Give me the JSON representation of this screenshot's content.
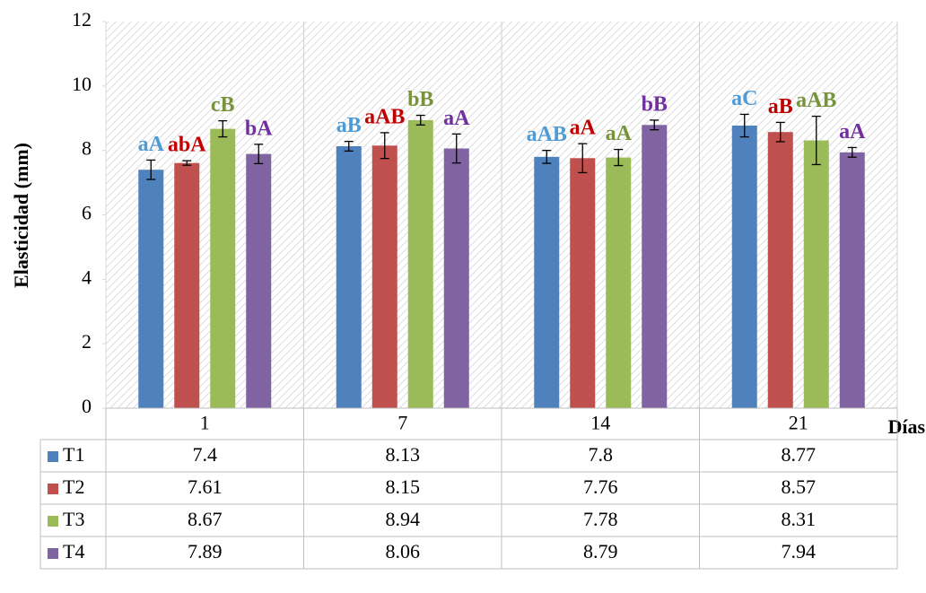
{
  "chart_data": {
    "type": "bar",
    "ylabel": "Elasticidad (mm)",
    "xlabel": "Días",
    "categories": [
      "1",
      "7",
      "14",
      "21"
    ],
    "ylim": [
      0,
      12
    ],
    "yticks": [
      0,
      2,
      4,
      6,
      8,
      10,
      12
    ],
    "series": [
      {
        "name": "T1",
        "color": "#4f81bd",
        "label_color": "#4f9bd6",
        "values": [
          7.4,
          8.13,
          7.8,
          8.77
        ],
        "errors": [
          0.3,
          0.15,
          0.2,
          0.35
        ],
        "annotations": [
          "aA",
          "aB",
          "aAB",
          "aC"
        ]
      },
      {
        "name": "T2",
        "color": "#c0504d",
        "label_color": "#c00000",
        "values": [
          7.61,
          8.15,
          7.76,
          8.57
        ],
        "errors": [
          0.07,
          0.4,
          0.45,
          0.3
        ],
        "annotations": [
          "abA",
          "aAB",
          "aA",
          "aB"
        ]
      },
      {
        "name": "T3",
        "color": "#9bbb59",
        "label_color": "#77933c",
        "values": [
          8.67,
          8.94,
          7.78,
          8.31
        ],
        "errors": [
          0.25,
          0.15,
          0.25,
          0.75
        ],
        "annotations": [
          "cB",
          "bB",
          "aA",
          "aAB"
        ]
      },
      {
        "name": "T4",
        "color": "#8064a2",
        "label_color": "#7030a0",
        "values": [
          7.89,
          8.06,
          8.79,
          7.94
        ],
        "errors": [
          0.3,
          0.45,
          0.15,
          0.15
        ],
        "annotations": [
          "bA",
          "aA",
          "bB",
          "aA"
        ]
      }
    ]
  }
}
